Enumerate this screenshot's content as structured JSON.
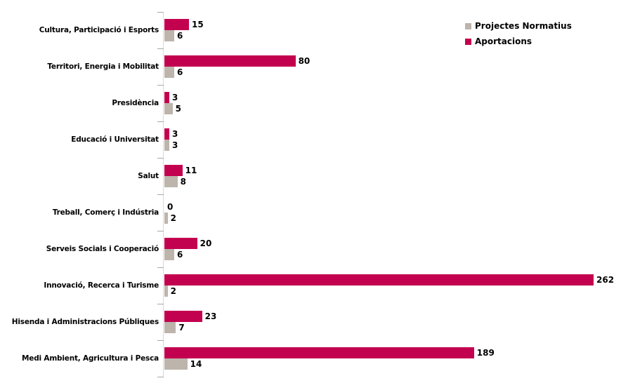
{
  "chart_data": {
    "type": "bar",
    "orientation": "horizontal",
    "title": "",
    "xlabel": "",
    "ylabel": "",
    "grid": false,
    "legend_position": "top-right",
    "value_labels": true,
    "xlim": [
      0,
      275
    ],
    "axis_color": "#D9D9D9",
    "tick_color": "#A8A8A8",
    "categories": [
      "Cultura, Participació i Esports",
      "Territori, Energia i Mobilitat",
      "Presidència",
      "Educació i Universitat",
      "Salut",
      "Treball, Comerç i Indústria",
      "Serveis Socials i Cooperació",
      "Innovació, Recerca i Turisme",
      "Hisenda i Administracions Públiques",
      "Medi Ambient, Agricultura i Pesca"
    ],
    "series": [
      {
        "name": "Projectes Normatius",
        "color": "#BDB4AC",
        "values": [
          6,
          6,
          5,
          3,
          8,
          2,
          6,
          2,
          7,
          14
        ]
      },
      {
        "name": "Aportacions",
        "color": "#C3024F",
        "values": [
          15,
          80,
          3,
          3,
          11,
          0,
          20,
          262,
          23,
          189
        ]
      }
    ]
  }
}
